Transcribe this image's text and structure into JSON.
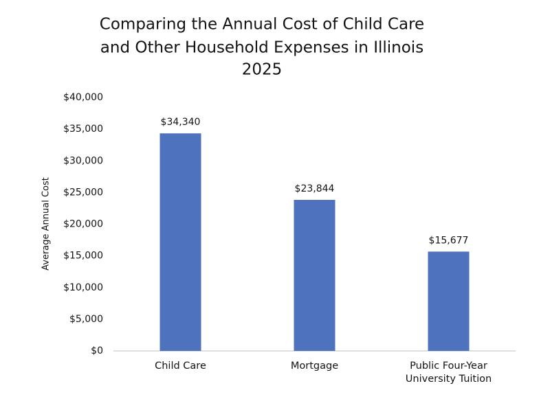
{
  "chart_data": {
    "type": "bar",
    "title": [
      "Comparing the Annual Cost of Child Care",
      "and Other Household Expenses in Illinois",
      "2025"
    ],
    "y_label": "Average Annual Cost",
    "categories": [
      "Child Care",
      "Mortgage",
      "Public Four-Year University Tuition"
    ],
    "values": [
      34340,
      23844,
      15677
    ],
    "value_labels": [
      "$34,340",
      "$23,844",
      "$15,677"
    ],
    "color": "#4e72be",
    "ylim": [
      0,
      40000
    ],
    "yticks": [
      {
        "value": 0,
        "label": "$0"
      },
      {
        "value": 5000,
        "label": "$5,000"
      },
      {
        "value": 10000,
        "label": "$10,000"
      },
      {
        "value": 15000,
        "label": "$15,000"
      },
      {
        "value": 20000,
        "label": "$20,000"
      },
      {
        "value": 25000,
        "label": "$25,000"
      },
      {
        "value": 30000,
        "label": "$30,000"
      },
      {
        "value": 35000,
        "label": "$35,000"
      },
      {
        "value": 40000,
        "label": "$40,000"
      }
    ],
    "grid": false
  }
}
